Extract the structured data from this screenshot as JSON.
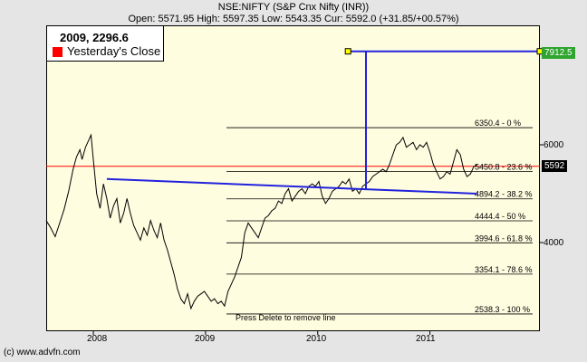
{
  "header": {
    "title": "NSE:NIFTY (S&P Cnx Nifty (INR))",
    "subtitle": "Open: 5571.95 High: 5597.35 Low: 5543.35 Cur: 5592.0 (+31.85/+00.57%)"
  },
  "legend": {
    "title": "2009, 2296.6",
    "label": "Yesterday's Close",
    "swatch_color": "#ff0000"
  },
  "price_tags": {
    "current": "5592",
    "line_end": "7912.5"
  },
  "axis": {
    "y_ticks": [
      "6000",
      "4000"
    ],
    "x_ticks": [
      "2008",
      "2009",
      "2010",
      "2011"
    ]
  },
  "instruction_text": "Press Delete to remove line",
  "footer": "(c) www.advfn.com",
  "colors": {
    "background": "#e5e5e5",
    "plot_bg": "#fffde0",
    "line_blue": "#2222dd",
    "yesterday_close": "#ff0000",
    "handle_fill": "#ffff00"
  },
  "chart_data": {
    "type": "line",
    "title": "NSE:NIFTY (S&P Cnx Nifty (INR))",
    "xlabel": "",
    "ylabel": "",
    "x_range": [
      2007.58,
      2011.98
    ],
    "y_range": [
      2700,
      7900
    ],
    "grid": false,
    "series": [
      {
        "points": [
          [
            2007.58,
            4450
          ],
          [
            2007.62,
            4300
          ],
          [
            2007.66,
            4120
          ],
          [
            2007.7,
            4400
          ],
          [
            2007.74,
            4680
          ],
          [
            2007.78,
            5050
          ],
          [
            2007.82,
            5500
          ],
          [
            2007.85,
            5750
          ],
          [
            2007.88,
            5900
          ],
          [
            2007.9,
            5700
          ],
          [
            2007.93,
            5950
          ],
          [
            2007.96,
            6100
          ],
          [
            2007.98,
            6200
          ],
          [
            2008.0,
            5700
          ],
          [
            2008.03,
            5000
          ],
          [
            2008.06,
            4700
          ],
          [
            2008.09,
            5200
          ],
          [
            2008.12,
            4900
          ],
          [
            2008.15,
            4500
          ],
          [
            2008.18,
            4750
          ],
          [
            2008.21,
            4900
          ],
          [
            2008.24,
            4400
          ],
          [
            2008.27,
            4600
          ],
          [
            2008.3,
            4900
          ],
          [
            2008.33,
            4600
          ],
          [
            2008.36,
            4350
          ],
          [
            2008.39,
            4200
          ],
          [
            2008.42,
            4050
          ],
          [
            2008.45,
            4300
          ],
          [
            2008.48,
            4150
          ],
          [
            2008.51,
            4450
          ],
          [
            2008.54,
            4250
          ],
          [
            2008.57,
            4100
          ],
          [
            2008.6,
            4400
          ],
          [
            2008.63,
            4050
          ],
          [
            2008.66,
            3850
          ],
          [
            2008.69,
            3600
          ],
          [
            2008.72,
            3350
          ],
          [
            2008.75,
            3050
          ],
          [
            2008.78,
            2850
          ],
          [
            2008.81,
            2750
          ],
          [
            2008.84,
            2950
          ],
          [
            2008.87,
            2650
          ],
          [
            2008.9,
            2800
          ],
          [
            2008.93,
            2900
          ],
          [
            2008.96,
            2950
          ],
          [
            2008.99,
            3000
          ],
          [
            2009.02,
            2900
          ],
          [
            2009.05,
            2800
          ],
          [
            2009.08,
            2850
          ],
          [
            2009.11,
            2750
          ],
          [
            2009.14,
            2800
          ],
          [
            2009.17,
            2700
          ],
          [
            2009.2,
            3000
          ],
          [
            2009.23,
            3150
          ],
          [
            2009.26,
            3300
          ],
          [
            2009.29,
            3500
          ],
          [
            2009.32,
            3700
          ],
          [
            2009.35,
            4200
          ],
          [
            2009.38,
            4400
          ],
          [
            2009.41,
            4300
          ],
          [
            2009.44,
            4200
          ],
          [
            2009.47,
            4100
          ],
          [
            2009.5,
            4300
          ],
          [
            2009.53,
            4500
          ],
          [
            2009.56,
            4550
          ],
          [
            2009.59,
            4650
          ],
          [
            2009.62,
            4700
          ],
          [
            2009.65,
            4850
          ],
          [
            2009.68,
            4800
          ],
          [
            2009.71,
            5000
          ],
          [
            2009.74,
            5100
          ],
          [
            2009.77,
            4850
          ],
          [
            2009.8,
            4950
          ],
          [
            2009.83,
            5050
          ],
          [
            2009.86,
            5100
          ],
          [
            2009.89,
            5000
          ],
          [
            2009.92,
            5150
          ],
          [
            2009.95,
            5200
          ],
          [
            2009.98,
            5150
          ],
          [
            2010.01,
            5250
          ],
          [
            2010.04,
            4950
          ],
          [
            2010.07,
            4800
          ],
          [
            2010.1,
            4900
          ],
          [
            2010.13,
            5050
          ],
          [
            2010.16,
            5100
          ],
          [
            2010.19,
            5150
          ],
          [
            2010.22,
            5250
          ],
          [
            2010.25,
            5200
          ],
          [
            2010.28,
            5300
          ],
          [
            2010.31,
            5050
          ],
          [
            2010.34,
            5100
          ],
          [
            2010.37,
            5000
          ],
          [
            2010.4,
            5150
          ],
          [
            2010.43,
            5200
          ],
          [
            2010.46,
            5250
          ],
          [
            2010.49,
            5350
          ],
          [
            2010.52,
            5400
          ],
          [
            2010.55,
            5450
          ],
          [
            2010.58,
            5500
          ],
          [
            2010.61,
            5450
          ],
          [
            2010.64,
            5600
          ],
          [
            2010.67,
            5800
          ],
          [
            2010.7,
            6000
          ],
          [
            2010.73,
            6050
          ],
          [
            2010.76,
            6150
          ],
          [
            2010.79,
            5950
          ],
          [
            2010.82,
            6000
          ],
          [
            2010.85,
            6050
          ],
          [
            2010.88,
            5900
          ],
          [
            2010.91,
            6000
          ],
          [
            2010.94,
            5950
          ],
          [
            2010.97,
            6050
          ],
          [
            2011.0,
            5850
          ],
          [
            2011.03,
            5600
          ],
          [
            2011.06,
            5450
          ],
          [
            2011.09,
            5300
          ],
          [
            2011.12,
            5350
          ],
          [
            2011.15,
            5450
          ],
          [
            2011.18,
            5400
          ],
          [
            2011.21,
            5650
          ],
          [
            2011.24,
            5900
          ],
          [
            2011.27,
            5800
          ],
          [
            2011.3,
            5500
          ],
          [
            2011.33,
            5350
          ],
          [
            2011.36,
            5400
          ],
          [
            2011.39,
            5550
          ],
          [
            2011.42,
            5592
          ]
        ]
      }
    ],
    "yesterday_close": 5560,
    "trend_line": [
      [
        2008.12,
        5300
      ],
      [
        2011.42,
        5000
      ]
    ],
    "drawn_line": [
      [
        2010.27,
        7912.5
      ],
      [
        2010.43,
        7912.5
      ],
      [
        2010.43,
        5100
      ],
      [
        2011.98,
        7912.5
      ]
    ],
    "fib_levels": [
      {
        "value": 6350.4,
        "label": "6350.4 - 0 %"
      },
      {
        "value": 5450.8,
        "label": "5450.8 - 23.6 %"
      },
      {
        "value": 4894.2,
        "label": "4894.2 - 38.2 %"
      },
      {
        "value": 4444.4,
        "label": "4444.4 - 50 %"
      },
      {
        "value": 3994.6,
        "label": "3994.6 - 61.8 %"
      },
      {
        "value": 3354.1,
        "label": "3354.1 - 78.6 %"
      },
      {
        "value": 2538.3,
        "label": "2538.3 - 100 %"
      }
    ]
  }
}
